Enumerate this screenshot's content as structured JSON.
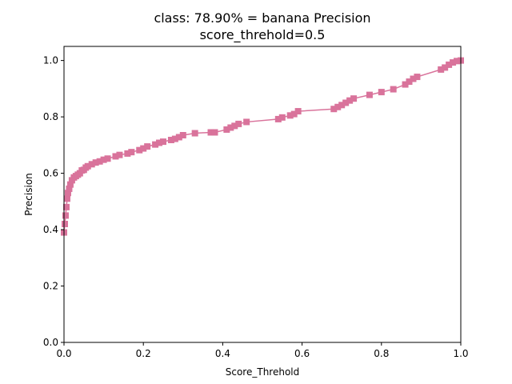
{
  "chart_data": {
    "type": "line",
    "title_line1": "class: 78.90% = banana Precision",
    "title_line2": "score_threhold=0.5",
    "xlabel": "Score_Threhold",
    "ylabel": "Precision",
    "xlim": [
      0,
      1
    ],
    "ylim": [
      0,
      1.05
    ],
    "xticks": [
      "0.0",
      "0.2",
      "0.4",
      "0.6",
      "0.8",
      "1.0"
    ],
    "yticks": [
      "0.0",
      "0.2",
      "0.4",
      "0.6",
      "0.8",
      "1.0"
    ],
    "grid": false,
    "series": [
      {
        "color": "#d9739b",
        "marker": "square",
        "x": [
          0.0,
          0.002,
          0.004,
          0.006,
          0.008,
          0.01,
          0.013,
          0.016,
          0.02,
          0.025,
          0.03,
          0.035,
          0.04,
          0.045,
          0.05,
          0.055,
          0.06,
          0.07,
          0.08,
          0.09,
          0.1,
          0.11,
          0.13,
          0.14,
          0.16,
          0.17,
          0.19,
          0.2,
          0.21,
          0.23,
          0.24,
          0.25,
          0.27,
          0.28,
          0.29,
          0.3,
          0.33,
          0.37,
          0.38,
          0.41,
          0.42,
          0.43,
          0.44,
          0.46,
          0.54,
          0.55,
          0.57,
          0.58,
          0.59,
          0.68,
          0.69,
          0.7,
          0.71,
          0.72,
          0.73,
          0.77,
          0.8,
          0.83,
          0.86,
          0.87,
          0.88,
          0.89,
          0.95,
          0.96,
          0.97,
          0.98,
          0.99,
          1.0
        ],
        "y": [
          0.39,
          0.42,
          0.45,
          0.48,
          0.51,
          0.53,
          0.545,
          0.56,
          0.575,
          0.585,
          0.59,
          0.595,
          0.6,
          0.61,
          0.612,
          0.62,
          0.625,
          0.632,
          0.638,
          0.642,
          0.648,
          0.652,
          0.66,
          0.665,
          0.67,
          0.675,
          0.682,
          0.688,
          0.695,
          0.702,
          0.708,
          0.712,
          0.718,
          0.722,
          0.728,
          0.735,
          0.742,
          0.745,
          0.745,
          0.755,
          0.762,
          0.768,
          0.775,
          0.782,
          0.792,
          0.798,
          0.805,
          0.81,
          0.82,
          0.828,
          0.835,
          0.842,
          0.85,
          0.858,
          0.865,
          0.878,
          0.888,
          0.898,
          0.915,
          0.925,
          0.935,
          0.942,
          0.968,
          0.975,
          0.985,
          0.993,
          0.998,
          1.0
        ]
      }
    ]
  }
}
